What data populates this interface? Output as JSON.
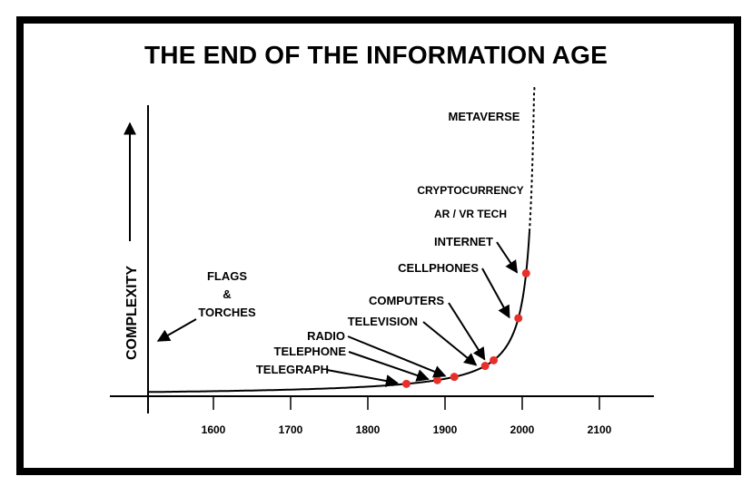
{
  "chart_data": {
    "type": "line",
    "title": "THE END OF THE INFORMATION AGE",
    "ylabel": "COMPLEXITY",
    "xlabel": "",
    "x_ticks": [
      1600,
      1700,
      1800,
      1900,
      2000,
      2100
    ],
    "xlim": [
      1550,
      2180
    ],
    "grid": false,
    "annotations": [
      {
        "text": "FLAGS",
        "group": "early"
      },
      {
        "text": "&",
        "group": "early"
      },
      {
        "text": "TORCHES",
        "group": "early"
      },
      {
        "text": "METAVERSE",
        "group": "future"
      },
      {
        "text": "CRYPTOCURRENCY",
        "group": "future"
      },
      {
        "text": "AR / VR TECH",
        "group": "future"
      }
    ],
    "milestones": [
      {
        "label": "TELEGRAPH",
        "year": 1850
      },
      {
        "label": "TELEPHONE",
        "year": 1890
      },
      {
        "label": "RADIO",
        "year": 1912
      },
      {
        "label": "TELEVISION",
        "year": 1952
      },
      {
        "label": "COMPUTERS",
        "year": 1963
      },
      {
        "label": "CELLPHONES",
        "year": 1995
      },
      {
        "label": "INTERNET",
        "year": 2005
      }
    ],
    "colors": {
      "curve": "#000000",
      "marker": "#e8302a",
      "frame": "#000000"
    }
  }
}
